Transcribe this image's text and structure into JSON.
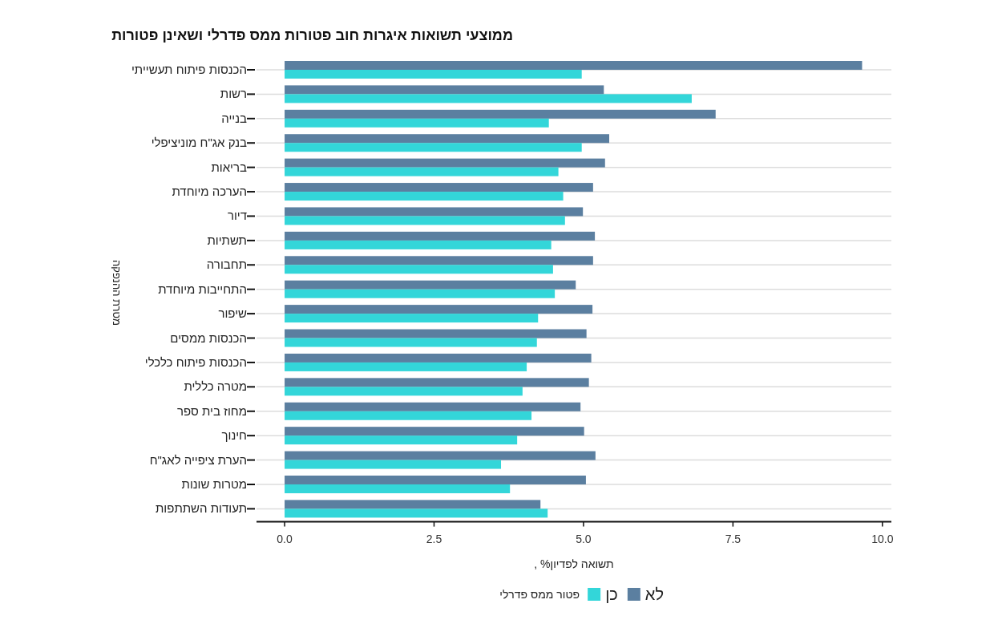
{
  "chart_data": {
    "type": "bar",
    "orientation": "horizontal",
    "title": "ממוצעי תשואות איגרות חוב פטורות ממס פדרלי ושאינן פטורות",
    "xlabel": "תשואה לפדיון% ,",
    "ylabel": "מטרת ההנפקה",
    "legend_title": "פטור ממס פדרלי",
    "categories": [
      "הכנסות פיתוח תעשייתי",
      "רשות",
      "בנייה",
      "בנק אג\"ח מוניציפלי",
      "בריאות",
      "הערכה מיוחדת",
      "דיור",
      "תשתיות",
      "תחבורה",
      "התחייבות מיוחדת",
      "שיפור",
      "הכנסות ממסים",
      "הכנסות פיתוח כלכלי",
      "מטרה כללית",
      "מחוז בית ספר",
      "חינוך",
      "הערת ציפייה לאג\"ח",
      "מטרות שונות",
      "תעודות השתתפות"
    ],
    "series": [
      {
        "name": "לא",
        "color": "#5b7fa0",
        "values": [
          9.66,
          5.34,
          7.21,
          5.43,
          5.36,
          5.16,
          4.99,
          5.19,
          5.16,
          4.87,
          5.15,
          5.05,
          5.13,
          5.09,
          4.95,
          5.01,
          5.2,
          5.04,
          4.28
        ]
      },
      {
        "name": "כן",
        "color": "#33d6d9",
        "values": [
          4.97,
          6.81,
          4.42,
          4.97,
          4.58,
          4.66,
          4.69,
          4.46,
          4.49,
          4.52,
          4.24,
          4.22,
          4.05,
          3.98,
          4.13,
          3.89,
          3.62,
          3.77,
          4.4
        ]
      }
    ],
    "xlim": [
      -0.47,
      10.15
    ],
    "xticks": [
      {
        "value": 0,
        "label": "0.0"
      },
      {
        "value": 2.5,
        "label": "2.5"
      },
      {
        "value": 5,
        "label": "5.0"
      },
      {
        "value": 7.5,
        "label": "7.5"
      },
      {
        "value": 10,
        "label": "10.0"
      }
    ],
    "grid": "y",
    "legend": "bottom"
  }
}
